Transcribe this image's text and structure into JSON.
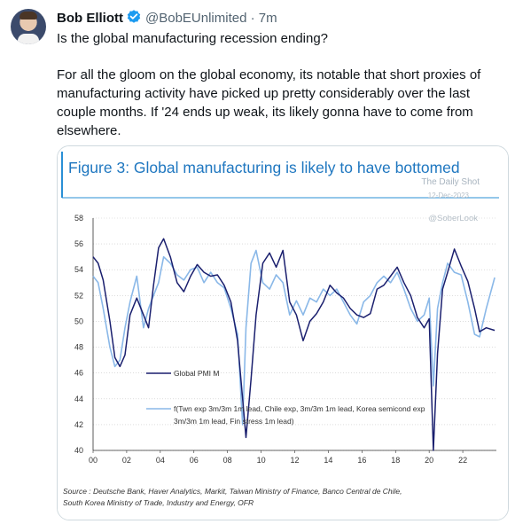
{
  "tweet": {
    "author_name": "Bob Elliott",
    "handle": "@BobEUnlimited",
    "separator": "·",
    "time": "7m",
    "paragraph1": "Is the global manufacturing recession ending?",
    "paragraph2": "For all the gloom on the global economy, its notable that short proxies of manufacturing activity have picked up pretty considerably over the last couple months. If '24 ends up weak, its likely gonna have to come from elsewhere.",
    "icons": [
      "avatar",
      "verified-badge-icon"
    ],
    "colors": {
      "verified": "#1d9bf0",
      "figure_title": "#1f77c0"
    }
  },
  "figure": {
    "title": "Figure 3: Global manufacturing is likely to have bottomed",
    "watermark_line1": "The Daily Shot",
    "watermark_line2": "12-Dec-2023",
    "watermark_handle": "@SoberLook",
    "source_line1": "Source : Deutsche Bank, Haver Analytics, Markit, Taiwan Ministry of Finance, Banco Central de Chile,",
    "source_line2": "South Korea Ministry of Trade, Industry and Energy, OFR"
  },
  "chart_data": {
    "type": "line",
    "xlim": [
      2000,
      2024
    ],
    "ylim": [
      40,
      58
    ],
    "x_ticks": [
      "00",
      "02",
      "04",
      "06",
      "08",
      "10",
      "12",
      "14",
      "16",
      "18",
      "20",
      "22"
    ],
    "y_ticks": [
      "40",
      "42",
      "44",
      "46",
      "48",
      "50",
      "52",
      "54",
      "56",
      "58"
    ],
    "grid": "horizontal dotted",
    "series": [
      {
        "name": "Global PMI M",
        "legend_line1": "Global PMI M",
        "color": "#1a1f6e",
        "x": [
          2000.0,
          2000.3,
          2000.6,
          2001.0,
          2001.3,
          2001.6,
          2001.9,
          2002.2,
          2002.6,
          2003.0,
          2003.3,
          2003.6,
          2003.9,
          2004.2,
          2004.6,
          2005.0,
          2005.4,
          2005.8,
          2006.2,
          2006.6,
          2007.0,
          2007.4,
          2007.8,
          2008.2,
          2008.6,
          2008.9,
          2009.1,
          2009.4,
          2009.7,
          2010.1,
          2010.5,
          2010.9,
          2011.3,
          2011.7,
          2012.1,
          2012.5,
          2012.9,
          2013.3,
          2013.7,
          2014.1,
          2014.5,
          2014.9,
          2015.3,
          2015.7,
          2016.1,
          2016.5,
          2016.9,
          2017.3,
          2017.7,
          2018.1,
          2018.5,
          2018.9,
          2019.3,
          2019.7,
          2020.0,
          2020.25,
          2020.5,
          2020.8,
          2021.1,
          2021.5,
          2021.9,
          2022.3,
          2022.7,
          2023.0,
          2023.4,
          2023.9
        ],
        "values": [
          55.0,
          54.5,
          53.2,
          50.0,
          47.2,
          46.5,
          47.4,
          50.5,
          51.8,
          50.5,
          49.5,
          52.8,
          55.7,
          56.4,
          55.0,
          53.0,
          52.3,
          53.5,
          54.4,
          53.8,
          53.5,
          53.6,
          52.8,
          51.5,
          48.5,
          44.0,
          41.0,
          45.5,
          50.5,
          54.5,
          55.3,
          54.2,
          55.5,
          51.5,
          50.5,
          48.5,
          50.0,
          50.6,
          51.5,
          52.8,
          52.2,
          51.8,
          51.0,
          50.5,
          50.3,
          50.6,
          52.5,
          52.8,
          53.5,
          54.2,
          53.0,
          52.0,
          50.3,
          49.5,
          50.2,
          40.0,
          47.5,
          52.5,
          53.8,
          55.6,
          54.3,
          53.1,
          51.0,
          49.2,
          49.5,
          49.3
        ]
      },
      {
        "name": "f(Twn exp 3m/3m 1m lead, Chile exp, 3m/3m 1m lead, Korea semicond exp 3m/3m 1m lead, Fin stress 1m lead)",
        "legend_line1": "f(Twn exp 3m/3m 1m lead, Chile exp, 3m/3m 1m lead, Korea semicond exp",
        "legend_line2": "3m/3m 1m lead, Fin stress 1m lead)",
        "color": "#8ab8e8",
        "x": [
          2000.0,
          2000.3,
          2000.6,
          2001.0,
          2001.3,
          2001.6,
          2001.9,
          2002.2,
          2002.6,
          2003.0,
          2003.3,
          2003.6,
          2003.9,
          2004.2,
          2004.6,
          2005.0,
          2005.4,
          2005.8,
          2006.2,
          2006.6,
          2007.0,
          2007.4,
          2007.8,
          2008.2,
          2008.6,
          2008.9,
          2009.1,
          2009.4,
          2009.7,
          2010.1,
          2010.5,
          2010.9,
          2011.3,
          2011.7,
          2012.1,
          2012.5,
          2012.9,
          2013.3,
          2013.7,
          2014.1,
          2014.5,
          2014.9,
          2015.3,
          2015.7,
          2016.1,
          2016.5,
          2016.9,
          2017.3,
          2017.7,
          2018.1,
          2018.5,
          2018.9,
          2019.3,
          2019.7,
          2020.0,
          2020.25,
          2020.5,
          2020.8,
          2021.1,
          2021.5,
          2021.9,
          2022.3,
          2022.7,
          2023.0,
          2023.4,
          2023.9
        ],
        "values": [
          53.5,
          53.0,
          51.0,
          48.0,
          46.5,
          47.0,
          49.5,
          51.5,
          53.5,
          49.5,
          51.0,
          52.0,
          53.0,
          55.0,
          54.5,
          53.6,
          53.2,
          54.0,
          54.2,
          53.0,
          53.8,
          53.0,
          52.6,
          51.0,
          49.0,
          42.0,
          49.5,
          54.5,
          55.5,
          53.0,
          52.5,
          53.6,
          53.0,
          50.5,
          51.6,
          50.5,
          51.8,
          51.5,
          52.5,
          52.0,
          52.5,
          51.5,
          50.5,
          49.8,
          51.5,
          52.0,
          53.0,
          53.5,
          53.0,
          53.8,
          52.5,
          51.0,
          50.0,
          50.5,
          51.8,
          45.0,
          51.0,
          53.0,
          54.5,
          53.8,
          53.6,
          51.5,
          49.0,
          48.8,
          51.0,
          53.4
        ]
      }
    ]
  }
}
